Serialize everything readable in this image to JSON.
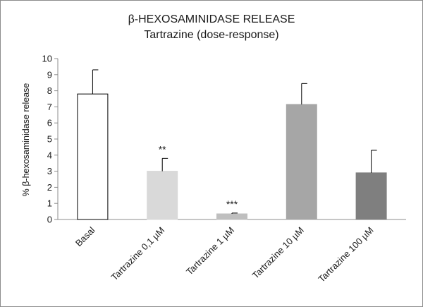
{
  "chart_data": {
    "type": "bar",
    "title": "β-HEXOSAMINIDASE RELEASE",
    "subtitle": "Tartrazine (dose-response)",
    "xlabel": "",
    "ylabel": "% β-hexosaminidase release",
    "ylim": [
      0,
      10
    ],
    "yticks": [
      0,
      1,
      2,
      3,
      4,
      5,
      6,
      7,
      8,
      9,
      10
    ],
    "grid": false,
    "legend": "none",
    "categories": [
      "Basal",
      "Tartrazine 0,1 µM",
      "Tartrazine 1 µM",
      "Tartrazine 10 µM",
      "Tartrazine 100 µM"
    ],
    "values": [
      7.8,
      3.0,
      0.35,
      7.15,
      2.9
    ],
    "error_plus": [
      1.5,
      0.8,
      0.05,
      1.3,
      1.4
    ],
    "significance": [
      "",
      "**",
      "***",
      "",
      ""
    ],
    "bar_fill_colors": [
      "#ffffff",
      "#d9d9d9",
      "#bfbfbf",
      "#a6a6a6",
      "#7f7f7f"
    ],
    "bar_stroke_colors": [
      "#000000",
      "#d9d9d9",
      "#bfbfbf",
      "#a6a6a6",
      "#7f7f7f"
    ]
  }
}
